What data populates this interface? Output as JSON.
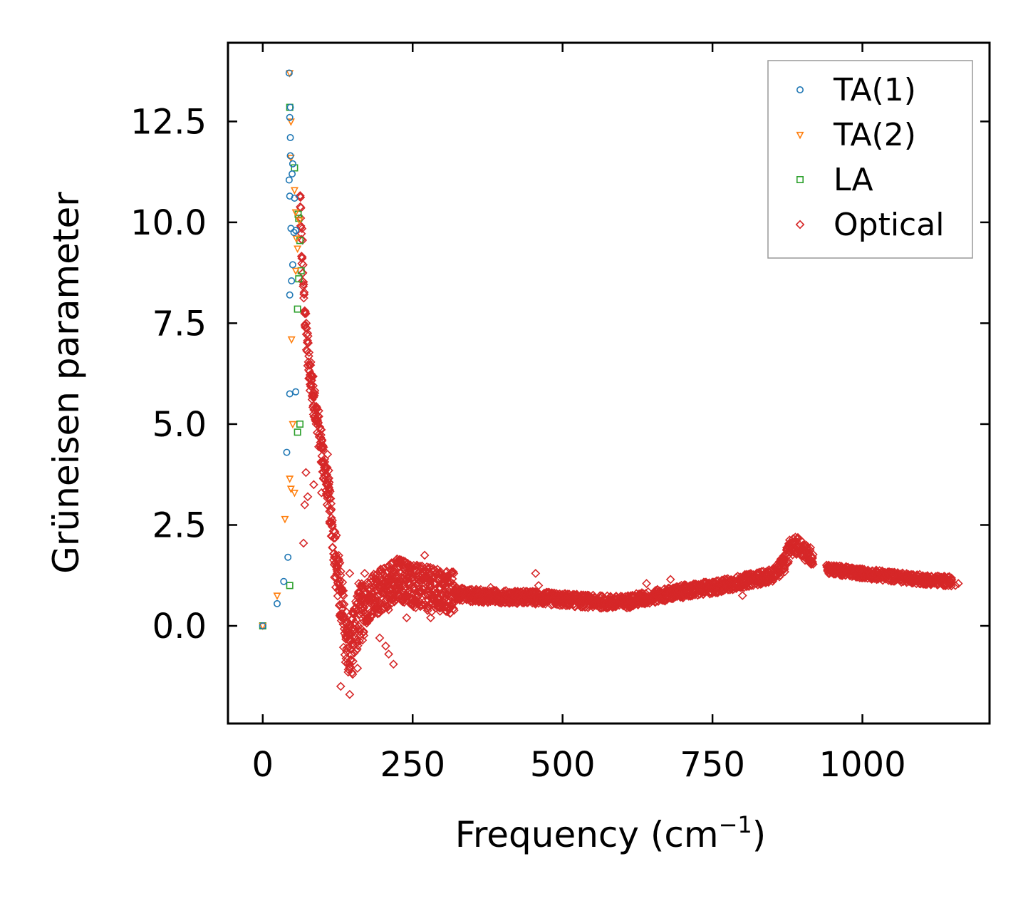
{
  "chart_data": {
    "type": "scatter",
    "title": "",
    "xlabel": "Frequency (cm",
    "xlabel_sup": "−1",
    "xlabel_close": ")",
    "ylabel": "Grüneisen parameter",
    "xlim": [
      -58,
      1212
    ],
    "ylim": [
      -2.42,
      14.45
    ],
    "xticks": [
      0,
      250,
      500,
      750,
      1000
    ],
    "xtick_labels": [
      "0",
      "250",
      "500",
      "750",
      "1000"
    ],
    "yticks": [
      0.0,
      2.5,
      5.0,
      7.5,
      10.0,
      12.5
    ],
    "ytick_labels": [
      "0.0",
      "2.5",
      "5.0",
      "7.5",
      "10.0",
      "12.5"
    ],
    "grid": false,
    "legend_position": "top-right",
    "series": [
      {
        "name": "TA(1)",
        "marker": "circle",
        "color": "#1f77b4",
        "points": [
          [
            0,
            0
          ],
          [
            24,
            0.55
          ],
          [
            35,
            1.1
          ],
          [
            42,
            1.7
          ],
          [
            40,
            4.3
          ],
          [
            45,
            5.75
          ],
          [
            55,
            5.8
          ],
          [
            45,
            8.2
          ],
          [
            48,
            8.55
          ],
          [
            50,
            8.95
          ],
          [
            52,
            9.75
          ],
          [
            47,
            9.85
          ],
          [
            55,
            9.8
          ],
          [
            45,
            10.65
          ],
          [
            53,
            10.6
          ],
          [
            44,
            11.05
          ],
          [
            49,
            11.2
          ],
          [
            50,
            11.45
          ],
          [
            46,
            11.65
          ],
          [
            46,
            12.1
          ],
          [
            45,
            12.6
          ],
          [
            46,
            12.85
          ],
          [
            44,
            13.7
          ]
        ]
      },
      {
        "name": "TA(2)",
        "marker": "triangle-down",
        "color": "#ff7f0e",
        "points": [
          [
            0,
            0
          ],
          [
            24,
            0.75
          ],
          [
            37,
            2.65
          ],
          [
            45,
            3.65
          ],
          [
            47,
            3.4
          ],
          [
            53,
            3.3
          ],
          [
            50,
            5.0
          ],
          [
            48,
            7.1
          ],
          [
            55,
            8.8
          ],
          [
            58,
            9.35
          ],
          [
            56,
            9.6
          ],
          [
            61,
            10.05
          ],
          [
            55,
            10.25
          ],
          [
            53,
            10.8
          ],
          [
            47,
            11.6
          ],
          [
            47,
            12.5
          ],
          [
            45,
            13.7
          ]
        ]
      },
      {
        "name": "LA",
        "marker": "square",
        "color": "#2ca02c",
        "points": [
          [
            0,
            0
          ],
          [
            45,
            1.0
          ],
          [
            58,
            4.8
          ],
          [
            62,
            5.0
          ],
          [
            58,
            7.85
          ],
          [
            60,
            8.6
          ],
          [
            64,
            8.8
          ],
          [
            62,
            9.55
          ],
          [
            60,
            10.1
          ],
          [
            59,
            10.2
          ],
          [
            53,
            11.35
          ],
          [
            45,
            12.85
          ]
        ]
      },
      {
        "name": "Optical",
        "marker": "diamond",
        "color": "#d62728",
        "curve": [
          [
            62,
            10.5
          ],
          [
            68,
            8.3
          ],
          [
            75,
            6.8
          ],
          [
            82,
            5.9
          ],
          [
            90,
            5.2
          ],
          [
            100,
            4.2
          ],
          [
            110,
            3.2
          ],
          [
            120,
            1.9
          ],
          [
            128,
            0.9
          ],
          [
            136,
            0.1
          ],
          [
            143,
            -0.65
          ],
          [
            150,
            -0.4
          ],
          [
            160,
            0.2
          ],
          [
            175,
            0.65
          ],
          [
            200,
            0.9
          ],
          [
            220,
            1.15
          ],
          [
            240,
            1.1
          ],
          [
            260,
            0.95
          ],
          [
            300,
            0.85
          ],
          [
            350,
            0.75
          ],
          [
            400,
            0.72
          ],
          [
            450,
            0.7
          ],
          [
            500,
            0.65
          ],
          [
            550,
            0.6
          ],
          [
            600,
            0.58
          ],
          [
            650,
            0.72
          ],
          [
            700,
            0.85
          ],
          [
            750,
            0.95
          ],
          [
            800,
            1.1
          ],
          [
            850,
            1.25
          ],
          [
            870,
            1.55
          ],
          [
            880,
            1.95
          ],
          [
            895,
            2.0
          ],
          [
            910,
            1.75
          ],
          [
            920,
            1.7
          ],
          [
            945,
            1.4
          ],
          [
            1000,
            1.3
          ],
          [
            1050,
            1.22
          ],
          [
            1100,
            1.15
          ],
          [
            1150,
            1.1
          ]
        ],
        "outliers": [
          [
            70,
            3.0
          ],
          [
            75,
            3.2
          ],
          [
            72,
            3.8
          ],
          [
            68,
            2.05
          ],
          [
            85,
            3.5
          ],
          [
            108,
            4.25
          ],
          [
            110,
            3.85
          ],
          [
            98,
            3.3
          ],
          [
            130,
            -1.5
          ],
          [
            145,
            -1.7
          ],
          [
            150,
            -1.2
          ],
          [
            158,
            -1.05
          ],
          [
            138,
            -0.9
          ],
          [
            145,
            -0.3
          ],
          [
            195,
            -0.3
          ],
          [
            205,
            -0.5
          ],
          [
            210,
            -0.7
          ],
          [
            218,
            -0.95
          ],
          [
            190,
            0.5
          ],
          [
            210,
            0.4
          ],
          [
            170,
            1.3
          ],
          [
            145,
            1.3
          ],
          [
            160,
            1.05
          ],
          [
            270,
            1.75
          ],
          [
            280,
            0.2
          ],
          [
            295,
            0.45
          ],
          [
            240,
            0.2
          ],
          [
            255,
            0.45
          ],
          [
            330,
            0.7
          ],
          [
            380,
            0.95
          ],
          [
            420,
            0.85
          ],
          [
            455,
            1.3
          ],
          [
            460,
            1.0
          ],
          [
            640,
            1.05
          ],
          [
            680,
            1.15
          ],
          [
            800,
            0.75
          ],
          [
            870,
            1.6
          ],
          [
            1160,
            1.05
          ],
          [
            1155,
            1.0
          ],
          [
            180,
            0.75
          ],
          [
            230,
            1.55
          ]
        ]
      }
    ]
  }
}
